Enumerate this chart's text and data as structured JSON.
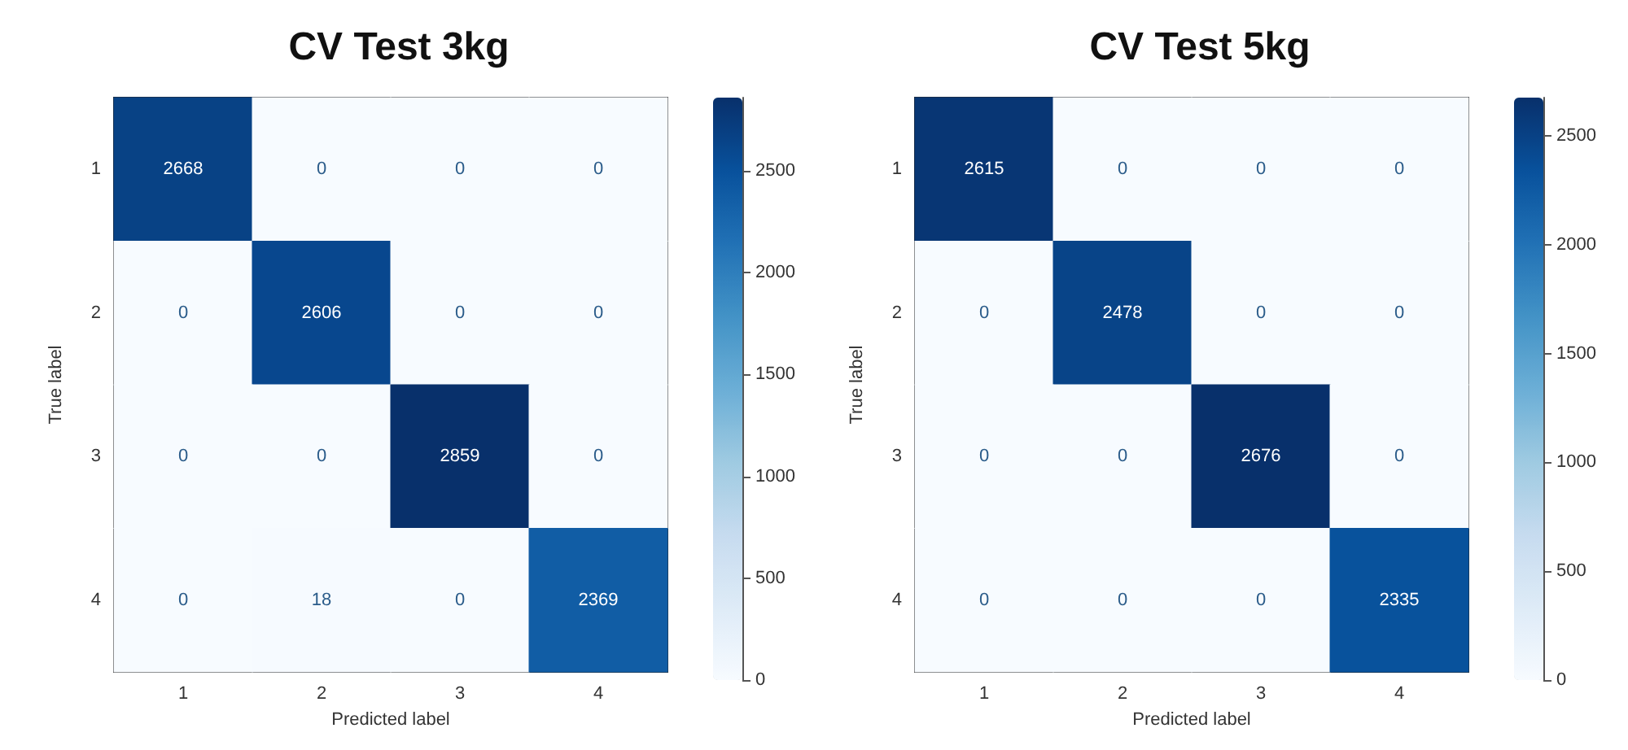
{
  "chart_data": [
    {
      "type": "heatmap",
      "title": "CV Test 3kg",
      "xlabel": "Predicted label",
      "ylabel": "True label",
      "categories": [
        "1",
        "2",
        "3",
        "4"
      ],
      "y_categories": [
        "1",
        "2",
        "3",
        "4"
      ],
      "cells": [
        [
          2668,
          0,
          0,
          0
        ],
        [
          0,
          2606,
          0,
          0
        ],
        [
          0,
          0,
          2859,
          0
        ],
        [
          0,
          18,
          0,
          2369
        ]
      ],
      "clim": [
        0,
        2859
      ],
      "cticks": [
        0,
        500,
        1000,
        1500,
        2000,
        2500
      ],
      "data_labels": true
    },
    {
      "type": "heatmap",
      "title": "CV Test 5kg",
      "xlabel": "Predicted label",
      "ylabel": "True label",
      "categories": [
        "1",
        "2",
        "3",
        "4"
      ],
      "y_categories": [
        "1",
        "2",
        "3",
        "4"
      ],
      "cells": [
        [
          2615,
          0,
          0,
          0
        ],
        [
          0,
          2478,
          0,
          0
        ],
        [
          0,
          0,
          2676,
          0
        ],
        [
          0,
          0,
          0,
          2335
        ]
      ],
      "clim": [
        0,
        2676
      ],
      "cticks": [
        0,
        500,
        1000,
        1500,
        2000,
        2500
      ],
      "data_labels": true
    }
  ]
}
